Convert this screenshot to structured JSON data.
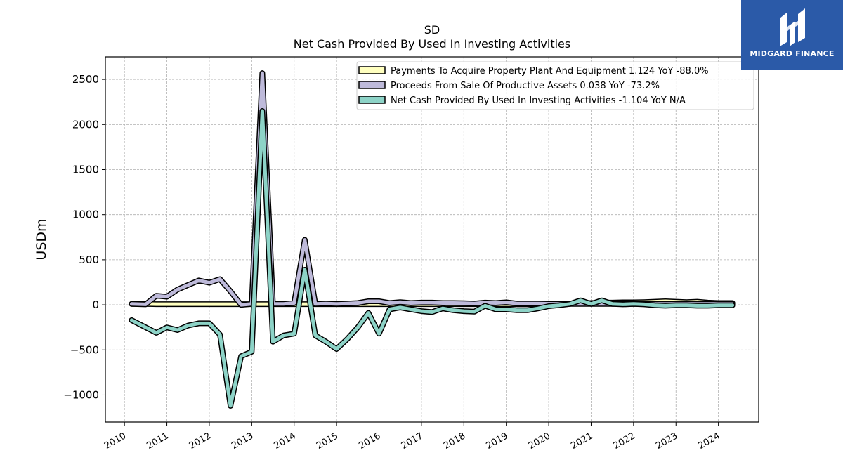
{
  "chart_data": {
    "type": "line",
    "title": "SD",
    "subtitle": "Net Cash Provided By Used In Investing Activities",
    "ylabel": "USDm",
    "xlabel": "",
    "ylim": [
      -1300,
      2750
    ],
    "xlim": [
      2009.55,
      2024.95
    ],
    "yticks": [
      -1000,
      -500,
      0,
      500,
      1000,
      1500,
      2000,
      2500
    ],
    "ytick_labels": [
      "−1000",
      "−500",
      "0",
      "500",
      "1000",
      "1500",
      "2000",
      "2500"
    ],
    "xticks": [
      2010,
      2011,
      2012,
      2013,
      2014,
      2015,
      2016,
      2017,
      2018,
      2019,
      2020,
      2021,
      2022,
      2023,
      2024
    ],
    "xtick_labels": [
      "2010",
      "2011",
      "2012",
      "2013",
      "2014",
      "2015",
      "2016",
      "2017",
      "2018",
      "2019",
      "2020",
      "2021",
      "2022",
      "2023",
      "2024"
    ],
    "grid": true,
    "legend_position": "top-right",
    "series": [
      {
        "name": "Payments To Acquire Property Plant And Equipment  1.124 YoY -88.0%",
        "color": "#ffffbf",
        "x": [
          2010.17,
          2010.5,
          2010.75,
          2011.0,
          2011.25,
          2011.5,
          2011.75,
          2012.0,
          2012.25,
          2012.5,
          2012.75,
          2013.0,
          2013.25,
          2013.5,
          2013.75,
          2014.0,
          2014.25,
          2014.5,
          2014.75,
          2015.0,
          2015.25,
          2015.5,
          2015.75,
          2016.0,
          2016.25,
          2016.5,
          2016.75,
          2017.0,
          2017.25,
          2017.5,
          2017.75,
          2018.0,
          2018.25,
          2018.5,
          2018.75,
          2019.0,
          2019.25,
          2019.5,
          2019.75,
          2020.0,
          2020.25,
          2020.5,
          2020.75,
          2021.0,
          2021.25,
          2021.5,
          2021.75,
          2022.0,
          2022.25,
          2022.5,
          2022.75,
          2023.0,
          2023.25,
          2023.5,
          2023.75,
          2024.0,
          2024.33
        ],
        "values": [
          10,
          10,
          8,
          8,
          8,
          8,
          8,
          8,
          8,
          8,
          8,
          8,
          8,
          8,
          8,
          8,
          8,
          8,
          8,
          8,
          8,
          8,
          8,
          8,
          8,
          8,
          8,
          8,
          8,
          8,
          8,
          8,
          8,
          8,
          8,
          8,
          8,
          8,
          8,
          10,
          12,
          15,
          20,
          20,
          25,
          25,
          28,
          28,
          30,
          35,
          40,
          35,
          30,
          35,
          25,
          20,
          20
        ]
      },
      {
        "name": "Proceeds From Sale Of Productive Assets  0.038 YoY -73.2%",
        "color": "#bebada",
        "x": [
          2010.17,
          2010.5,
          2010.75,
          2011.0,
          2011.25,
          2011.5,
          2011.75,
          2012.0,
          2012.25,
          2012.5,
          2012.75,
          2013.0,
          2013.25,
          2013.5,
          2013.75,
          2014.0,
          2014.25,
          2014.5,
          2014.75,
          2015.0,
          2015.25,
          2015.5,
          2015.75,
          2016.0,
          2016.25,
          2016.5,
          2016.75,
          2017.0,
          2017.25,
          2017.5,
          2017.75,
          2018.0,
          2018.25,
          2018.5,
          2018.75,
          2019.0,
          2019.25,
          2019.5,
          2019.75,
          2020.0,
          2020.25,
          2020.5,
          2020.75,
          2021.0,
          2021.25,
          2021.5,
          2021.75,
          2022.0,
          2022.25,
          2022.5,
          2022.75,
          2023.0,
          2023.25,
          2023.5,
          2023.75,
          2024.0,
          2024.33
        ],
        "values": [
          10,
          5,
          100,
          90,
          170,
          220,
          270,
          245,
          285,
          150,
          0,
          10,
          2570,
          10,
          10,
          20,
          720,
          10,
          15,
          10,
          15,
          20,
          40,
          40,
          20,
          30,
          20,
          25,
          25,
          20,
          20,
          18,
          15,
          25,
          20,
          28,
          15,
          15,
          15,
          12,
          10,
          10,
          10,
          10,
          10,
          10,
          10,
          10,
          10,
          10,
          10,
          10,
          10,
          10,
          10,
          10,
          10
        ]
      },
      {
        "name": "Net Cash Provided By Used In Investing Activities  -1.104 YoY N/A",
        "color": "#8dd3c7",
        "x": [
          2010.17,
          2010.5,
          2010.75,
          2011.0,
          2011.25,
          2011.5,
          2011.75,
          2012.0,
          2012.25,
          2012.5,
          2012.75,
          2013.0,
          2013.25,
          2013.5,
          2013.75,
          2014.0,
          2014.25,
          2014.5,
          2014.75,
          2015.0,
          2015.25,
          2015.5,
          2015.75,
          2016.0,
          2016.25,
          2016.5,
          2016.75,
          2017.0,
          2017.25,
          2017.5,
          2017.75,
          2018.0,
          2018.25,
          2018.5,
          2018.75,
          2019.0,
          2019.25,
          2019.5,
          2019.75,
          2020.0,
          2020.25,
          2020.5,
          2020.75,
          2021.0,
          2021.25,
          2021.5,
          2021.75,
          2022.0,
          2022.25,
          2022.5,
          2022.75,
          2023.0,
          2023.25,
          2023.5,
          2023.75,
          2024.0,
          2024.33
        ],
        "values": [
          -170,
          -250,
          -310,
          -250,
          -280,
          -230,
          -205,
          -205,
          -330,
          -1120,
          -570,
          -520,
          2150,
          -410,
          -340,
          -320,
          390,
          -340,
          -410,
          -490,
          -380,
          -250,
          -90,
          -320,
          -50,
          -30,
          -50,
          -70,
          -80,
          -40,
          -60,
          -70,
          -75,
          -10,
          -50,
          -50,
          -60,
          -60,
          -40,
          -15,
          -5,
          10,
          50,
          10,
          50,
          10,
          5,
          10,
          5,
          -5,
          -10,
          -5,
          -5,
          -10,
          -10,
          -5,
          -5
        ]
      }
    ]
  },
  "logo": {
    "text": "MIDGARD FINANCE",
    "color": "#2b5aa8"
  }
}
